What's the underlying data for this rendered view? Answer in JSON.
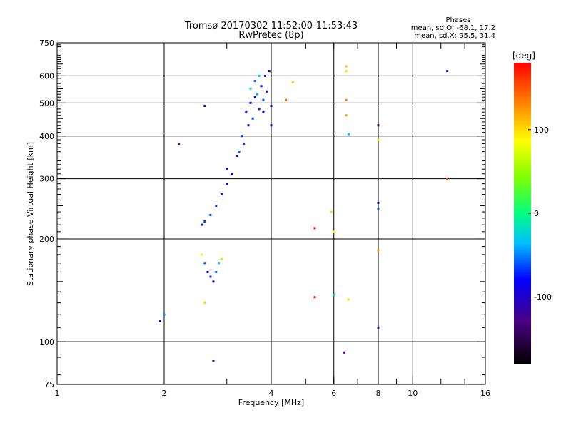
{
  "chart_data": {
    "type": "scatter",
    "title": "Tromsø 20170302 11:52:00-11:53:43",
    "subtitle": "RwPretec (8p)",
    "xlabel": "Frequency [MHz]",
    "ylabel": "Stationary phase Virtual Height [km]",
    "x_scale": "log",
    "y_scale": "log",
    "xlim": [
      1,
      16
    ],
    "ylim": [
      75,
      750
    ],
    "x_ticks": [
      {
        "v": 1,
        "label": "1"
      },
      {
        "v": 2,
        "label": "2"
      },
      {
        "v": 4,
        "label": "4"
      },
      {
        "v": 6,
        "label": "6"
      },
      {
        "v": 8,
        "label": "8"
      },
      {
        "v": 10,
        "label": "10"
      },
      {
        "v": 16,
        "label": "16"
      }
    ],
    "y_ticks": [
      {
        "v": 75,
        "label": "75"
      },
      {
        "v": 100,
        "label": "100"
      },
      {
        "v": 200,
        "label": "200"
      },
      {
        "v": 300,
        "label": "300"
      },
      {
        "v": 400,
        "label": "400"
      },
      {
        "v": 500,
        "label": "500"
      },
      {
        "v": 600,
        "label": "600"
      },
      {
        "v": 750,
        "label": "750"
      }
    ],
    "x_grid": [
      2,
      4,
      6,
      8,
      10
    ],
    "y_grid": [
      100,
      200,
      300,
      400,
      500,
      600
    ],
    "legend_lines": [
      "Phases",
      "mean, sd,O: -68.1, 17.2",
      "mean, sd,X:  95.5, 31.4"
    ],
    "colorbar": {
      "label": "[deg]",
      "range": [
        -180,
        180
      ],
      "ticks": [
        {
          "v": 100,
          "label": "100"
        },
        {
          "v": 0,
          "label": "0"
        },
        {
          "v": -100,
          "label": "-100"
        }
      ]
    },
    "points": [
      {
        "x": 3.5,
        "y": 500,
        "phase": -80
      },
      {
        "x": 3.6,
        "y": 520,
        "phase": -95
      },
      {
        "x": 3.7,
        "y": 480,
        "phase": -70
      },
      {
        "x": 3.8,
        "y": 510,
        "phase": -60
      },
      {
        "x": 3.9,
        "y": 540,
        "phase": -85
      },
      {
        "x": 3.4,
        "y": 470,
        "phase": -75
      },
      {
        "x": 3.55,
        "y": 450,
        "phase": -65
      },
      {
        "x": 3.75,
        "y": 560,
        "phase": -90
      },
      {
        "x": 3.85,
        "y": 600,
        "phase": -100
      },
      {
        "x": 3.95,
        "y": 620,
        "phase": -105
      },
      {
        "x": 3.3,
        "y": 400,
        "phase": -70
      },
      {
        "x": 3.2,
        "y": 350,
        "phase": -80
      },
      {
        "x": 3.1,
        "y": 310,
        "phase": -85
      },
      {
        "x": 3.0,
        "y": 290,
        "phase": -75
      },
      {
        "x": 2.9,
        "y": 270,
        "phase": -80
      },
      {
        "x": 2.8,
        "y": 250,
        "phase": -70
      },
      {
        "x": 2.7,
        "y": 235,
        "phase": -60
      },
      {
        "x": 2.6,
        "y": 225,
        "phase": -65
      },
      {
        "x": 2.55,
        "y": 220,
        "phase": -75
      },
      {
        "x": 3.0,
        "y": 320,
        "phase": -90
      },
      {
        "x": 3.6,
        "y": 580,
        "phase": -55
      },
      {
        "x": 3.45,
        "y": 430,
        "phase": -85
      },
      {
        "x": 3.65,
        "y": 530,
        "phase": -40
      },
      {
        "x": 3.8,
        "y": 470,
        "phase": -95
      },
      {
        "x": 3.7,
        "y": 600,
        "phase": -30
      },
      {
        "x": 4.0,
        "y": 490,
        "phase": -110
      },
      {
        "x": 4.0,
        "y": 430,
        "phase": -100
      },
      {
        "x": 3.35,
        "y": 380,
        "phase": -70
      },
      {
        "x": 3.25,
        "y": 360,
        "phase": -60
      },
      {
        "x": 3.5,
        "y": 550,
        "phase": -20
      },
      {
        "x": 2.6,
        "y": 170,
        "phase": -60
      },
      {
        "x": 2.65,
        "y": 160,
        "phase": -80
      },
      {
        "x": 2.7,
        "y": 155,
        "phase": -70
      },
      {
        "x": 2.75,
        "y": 150,
        "phase": -100
      },
      {
        "x": 2.8,
        "y": 160,
        "phase": -55
      },
      {
        "x": 2.85,
        "y": 170,
        "phase": -40
      },
      {
        "x": 2.9,
        "y": 175,
        "phase": 60
      },
      {
        "x": 2.55,
        "y": 180,
        "phase": 80
      },
      {
        "x": 2.6,
        "y": 130,
        "phase": 100
      },
      {
        "x": 1.95,
        "y": 115,
        "phase": -90
      },
      {
        "x": 2.0,
        "y": 120,
        "phase": -50
      },
      {
        "x": 2.2,
        "y": 380,
        "phase": -130
      },
      {
        "x": 2.6,
        "y": 490,
        "phase": -110
      },
      {
        "x": 2.75,
        "y": 88,
        "phase": -140
      },
      {
        "x": 4.4,
        "y": 510,
        "phase": 140
      },
      {
        "x": 4.6,
        "y": 575,
        "phase": 110
      },
      {
        "x": 5.3,
        "y": 215,
        "phase": 170
      },
      {
        "x": 5.3,
        "y": 135,
        "phase": 170
      },
      {
        "x": 5.9,
        "y": 240,
        "phase": 100
      },
      {
        "x": 6.0,
        "y": 210,
        "phase": 90
      },
      {
        "x": 6.0,
        "y": 137,
        "phase": -20
      },
      {
        "x": 6.4,
        "y": 93,
        "phase": -130
      },
      {
        "x": 6.5,
        "y": 640,
        "phase": 110
      },
      {
        "x": 6.5,
        "y": 620,
        "phase": 100
      },
      {
        "x": 6.5,
        "y": 510,
        "phase": 130
      },
      {
        "x": 6.5,
        "y": 460,
        "phase": 120
      },
      {
        "x": 6.6,
        "y": 405,
        "phase": -40
      },
      {
        "x": 6.6,
        "y": 133,
        "phase": 100
      },
      {
        "x": 8.0,
        "y": 430,
        "phase": -140
      },
      {
        "x": 8.0,
        "y": 390,
        "phase": 100
      },
      {
        "x": 8.0,
        "y": 255,
        "phase": -110
      },
      {
        "x": 8.0,
        "y": 245,
        "phase": -60
      },
      {
        "x": 8.0,
        "y": 185,
        "phase": 120
      },
      {
        "x": 8.0,
        "y": 110,
        "phase": -120
      },
      {
        "x": 12.5,
        "y": 620,
        "phase": -70
      },
      {
        "x": 12.5,
        "y": 300,
        "phase": 150
      }
    ]
  }
}
